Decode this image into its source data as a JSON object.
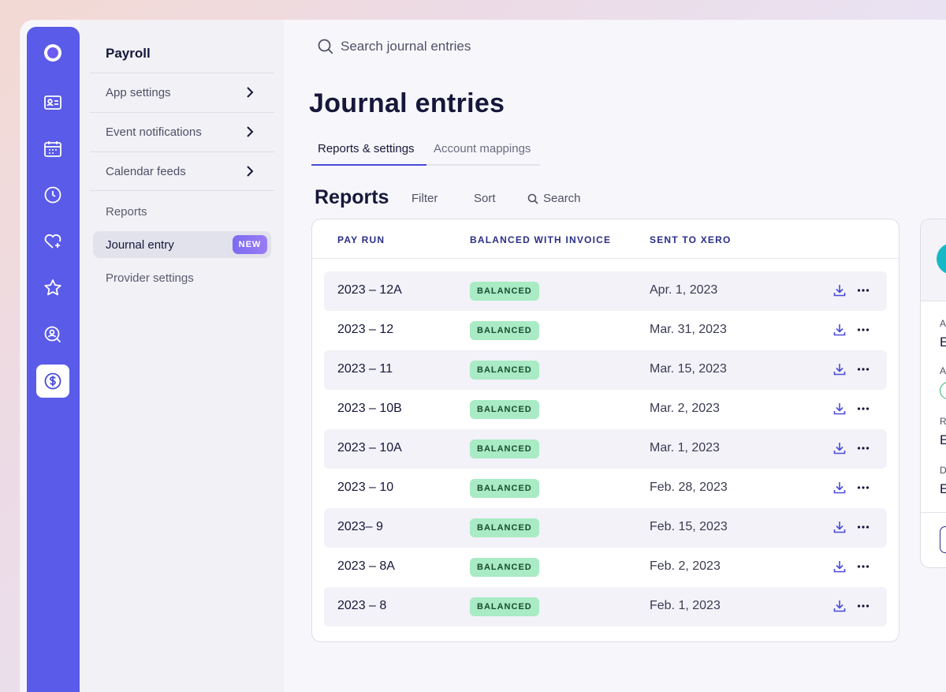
{
  "rail": {
    "icons": [
      "logo-icon",
      "contact-card-icon",
      "calendar-icon",
      "clock-icon",
      "heart-plus-icon",
      "star-icon",
      "search-person-icon",
      "dollar-icon"
    ]
  },
  "submenu": {
    "title": "Payroll",
    "items": [
      {
        "label": "App settings"
      },
      {
        "label": "Event notifications"
      },
      {
        "label": "Calendar feeds"
      }
    ],
    "plain": [
      "Reports",
      "Provider settings"
    ],
    "active": {
      "label": "Journal entry",
      "badge": "NEW"
    }
  },
  "search": {
    "placeholder": "Search journal entries"
  },
  "page": {
    "title": "Journal entries"
  },
  "tabs": [
    {
      "label": "Reports & settings",
      "active": true
    },
    {
      "label": "Account mappings",
      "active": false
    }
  ],
  "reports": {
    "title": "Reports",
    "tools": {
      "filter": "Filter",
      "sort": "Sort",
      "search": "Search"
    }
  },
  "table": {
    "columns": [
      "PAY RUN",
      "BALANCED WITH INVOICE",
      "SENT TO XERO"
    ],
    "rows": [
      {
        "pay_run": "2023 – 12A",
        "status": "BALANCED",
        "sent": "Apr. 1, 2023"
      },
      {
        "pay_run": "2023 – 12",
        "status": "BALANCED",
        "sent": "Mar. 31, 2023"
      },
      {
        "pay_run": "2023 – 11",
        "status": "BALANCED",
        "sent": "Mar. 15, 2023"
      },
      {
        "pay_run": "2023 – 10B",
        "status": "BALANCED",
        "sent": "Mar. 2, 2023"
      },
      {
        "pay_run": "2023 – 10A",
        "status": "BALANCED",
        "sent": "Mar. 1, 2023"
      },
      {
        "pay_run": "2023 – 10",
        "status": "BALANCED",
        "sent": "Feb. 28, 2023"
      },
      {
        "pay_run": "2023– 9",
        "status": "BALANCED",
        "sent": "Feb. 15, 2023"
      },
      {
        "pay_run": "2023 – 8A",
        "status": "BALANCED",
        "sent": "Feb. 2, 2023"
      },
      {
        "pay_run": "2023 – 8",
        "status": "BALANCED",
        "sent": "Feb. 1, 2023"
      }
    ]
  },
  "side_card": {
    "labels": [
      "A",
      "A",
      "R",
      "D"
    ],
    "values": [
      "E",
      "E",
      "E"
    ]
  },
  "colors": {
    "rail": "#5a5be8",
    "accent": "#4a4bd8",
    "badge_green": "#a8ebc4",
    "header_text": "#2b2f87"
  }
}
